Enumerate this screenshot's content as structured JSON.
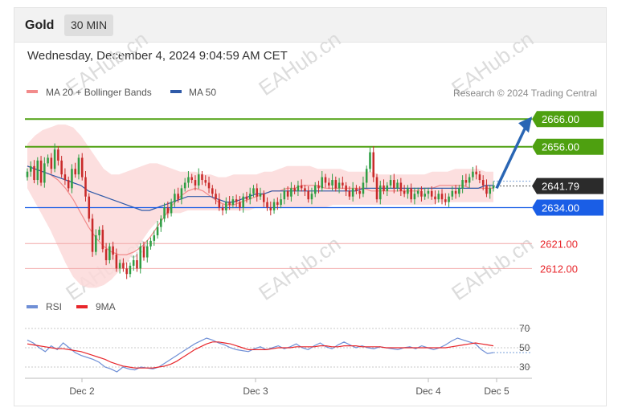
{
  "header": {
    "symbol": "Gold",
    "timeframe": "30 MIN"
  },
  "datetime": "Wednesday, December 4, 2024 9:04:59 AM CET",
  "legend": {
    "ma20": "MA 20 + Bollinger Bands",
    "ma50": "MA 50",
    "credit": "Research © 2024 Trading Central",
    "colors": {
      "ma20": "#f28b8b",
      "ma50": "#2f5aa8"
    }
  },
  "watermark": "EAHub.cn",
  "rsi_legend": {
    "rsi": "RSI",
    "ma": "9MA",
    "colors": {
      "rsi": "#6f8fd6",
      "ma": "#e8262b"
    }
  },
  "chart_data": [
    {
      "type": "candlestick",
      "x_ticks": [
        "Dec 2",
        "Dec 3",
        "Dec 4",
        "Dec 5"
      ],
      "ylim": [
        2606,
        2671
      ],
      "current_price": {
        "label": "2641.79",
        "value": 2641.79,
        "color": "#2b2b2b"
      },
      "levels": [
        {
          "label": "2666.00",
          "value": 2666,
          "color": "#4ea010",
          "style": "resistance"
        },
        {
          "label": "2656.00",
          "value": 2656,
          "color": "#4ea010",
          "style": "resistance"
        },
        {
          "label": "2634.00",
          "value": 2634,
          "color": "#1a5ee6",
          "style": "pivot"
        },
        {
          "label": "2621.00",
          "value": 2621,
          "color": "#e8262b",
          "style": "support"
        },
        {
          "label": "2612.00",
          "value": 2612,
          "color": "#e8262b",
          "style": "support"
        }
      ],
      "forecast_arrow": {
        "from": 2641,
        "to": 2666,
        "color": "#2a66b4"
      },
      "close": [
        2647,
        2649,
        2644,
        2651,
        2643,
        2650,
        2652,
        2648,
        2655,
        2651,
        2646,
        2644,
        2641,
        2648,
        2646,
        2652,
        2645,
        2638,
        2630,
        2618,
        2624,
        2626,
        2619,
        2615,
        2620,
        2617,
        2612,
        2614,
        2612,
        2610,
        2613,
        2615,
        2612,
        2620,
        2616,
        2620,
        2622,
        2624,
        2627,
        2630,
        2634,
        2632,
        2636,
        2639,
        2637,
        2641,
        2643,
        2645,
        2644,
        2642,
        2646,
        2644,
        2643,
        2641,
        2639,
        2637,
        2634,
        2633,
        2636,
        2635,
        2637,
        2636,
        2634,
        2638,
        2637,
        2639,
        2641,
        2638,
        2639,
        2636,
        2634,
        2633,
        2636,
        2635,
        2637,
        2640,
        2638,
        2641,
        2640,
        2642,
        2641,
        2640,
        2637,
        2639,
        2642,
        2641,
        2645,
        2643,
        2642,
        2644,
        2641,
        2643,
        2642,
        2640,
        2638,
        2641,
        2640,
        2639,
        2643,
        2648,
        2654,
        2645,
        2637,
        2642,
        2640,
        2642,
        2644,
        2641,
        2643,
        2640,
        2639,
        2641,
        2637,
        2639,
        2640,
        2638,
        2639,
        2640,
        2638,
        2637,
        2639,
        2637,
        2636,
        2638,
        2640,
        2639,
        2641,
        2644,
        2643,
        2645,
        2647,
        2646,
        2644,
        2642,
        2639,
        2641,
        2641.79
      ],
      "ma50": [
        2649,
        2648,
        2647,
        2646,
        2645,
        2644,
        2643,
        2642,
        2640,
        2639,
        2638,
        2637,
        2636,
        2635,
        2634,
        2633,
        2633,
        2634,
        2635,
        2636,
        2637,
        2638,
        2638,
        2638,
        2638,
        2637,
        2636,
        2636,
        2637,
        2638,
        2639,
        2639,
        2640,
        2640,
        2640,
        2640,
        2640,
        2640,
        2640,
        2640,
        2640,
        2640,
        2640,
        2640,
        2641,
        2641,
        2641,
        2641,
        2641,
        2641,
        2641,
        2641,
        2641,
        2641,
        2641,
        2641,
        2641,
        2641,
        2641,
        2641,
        2642,
        2642
      ],
      "ma20": [
        2649,
        2648,
        2647,
        2646,
        2644,
        2641,
        2637,
        2632,
        2627,
        2623,
        2620,
        2618,
        2617,
        2617,
        2618,
        2620,
        2623,
        2627,
        2631,
        2635,
        2638,
        2640,
        2641,
        2640,
        2638,
        2636,
        2635,
        2635,
        2636,
        2637,
        2638,
        2639,
        2640,
        2640,
        2641,
        2641,
        2642,
        2642,
        2642,
        2641,
        2641,
        2641,
        2641,
        2641,
        2641,
        2640,
        2640,
        2640,
        2640,
        2640,
        2640,
        2640,
        2641,
        2641,
        2642,
        2642,
        2642,
        2642,
        2641,
        2641,
        2641,
        2641
      ],
      "bb_upper": [
        2657,
        2660,
        2662,
        2663,
        2664,
        2664,
        2663,
        2660,
        2656,
        2652,
        2648,
        2646,
        2646,
        2647,
        2648,
        2649,
        2650,
        2650,
        2649,
        2648,
        2647,
        2647,
        2647,
        2646,
        2646,
        2645,
        2645,
        2646,
        2646,
        2646,
        2646,
        2647,
        2647,
        2648,
        2649,
        2649,
        2649,
        2649,
        2648,
        2648,
        2648,
        2648,
        2647,
        2647,
        2647,
        2647,
        2646,
        2646,
        2646,
        2646,
        2646,
        2646,
        2646,
        2647,
        2647,
        2647,
        2648,
        2648,
        2648,
        2648,
        2647,
        2647
      ],
      "bb_lower": [
        2641,
        2636,
        2631,
        2626,
        2620,
        2614,
        2609,
        2606,
        2605,
        2605,
        2606,
        2608,
        2611,
        2614,
        2618,
        2622,
        2626,
        2629,
        2631,
        2632,
        2632,
        2633,
        2633,
        2633,
        2633,
        2633,
        2633,
        2633,
        2633,
        2633,
        2634,
        2634,
        2634,
        2634,
        2634,
        2634,
        2634,
        2634,
        2634,
        2634,
        2635,
        2635,
        2635,
        2635,
        2635,
        2635,
        2635,
        2635,
        2635,
        2635,
        2635,
        2635,
        2635,
        2635,
        2636,
        2636,
        2636,
        2636,
        2636,
        2636,
        2636,
        2636
      ]
    },
    {
      "type": "line",
      "name_series": [
        "RSI",
        "9MA"
      ],
      "ylim": [
        20,
        80
      ],
      "y_ticks": [
        "70",
        "50",
        "30"
      ],
      "rsi": [
        58,
        55,
        50,
        46,
        52,
        48,
        55,
        50,
        45,
        42,
        40,
        38,
        35,
        30,
        28,
        25,
        30,
        28,
        27,
        30,
        29,
        28,
        30,
        34,
        38,
        42,
        46,
        50,
        54,
        57,
        60,
        58,
        55,
        53,
        50,
        48,
        47,
        46,
        49,
        51,
        48,
        50,
        52,
        49,
        51,
        54,
        50,
        48,
        52,
        55,
        51,
        49,
        53,
        56,
        53,
        50,
        52,
        50,
        49,
        51,
        50,
        49,
        48,
        50,
        51,
        49,
        52,
        50,
        48,
        50,
        53,
        57,
        60,
        58,
        56,
        54,
        48,
        44,
        45
      ],
      "ma9": [
        54,
        53,
        52,
        51,
        50,
        49,
        49,
        48,
        47,
        46,
        44,
        42,
        40,
        38,
        35,
        33,
        31,
        30,
        29,
        29,
        29,
        29,
        30,
        31,
        33,
        36,
        40,
        44,
        48,
        51,
        54,
        56,
        56,
        55,
        54,
        52,
        50,
        48,
        48,
        48,
        48,
        49,
        50,
        50,
        50,
        51,
        51,
        51,
        51,
        52,
        52,
        51,
        51,
        52,
        52,
        52,
        51,
        51,
        51,
        51,
        50,
        50,
        50,
        50,
        50,
        50,
        50,
        50,
        50,
        50,
        50,
        51,
        52,
        53,
        54,
        55,
        54,
        53,
        52
      ]
    }
  ]
}
